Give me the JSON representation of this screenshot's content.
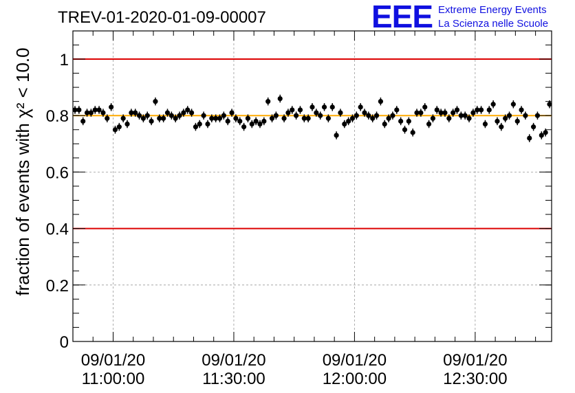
{
  "title": "TREV-01-2020-01-09-00007",
  "logo": {
    "letters": "EEE",
    "line1": "Extreme Energy Events",
    "line2": "La Scienza nelle Scuole",
    "color": "#1010e0"
  },
  "chart_data": {
    "type": "scatter",
    "title": "TREV-01-2020-01-09-00007",
    "ylabel": "fraction of events with χ² < 10.0",
    "xlabel": "",
    "ylim": [
      0,
      1.1
    ],
    "xlim_minutes": [
      -10,
      109
    ],
    "yticks": [
      0,
      0.2,
      0.4,
      0.6,
      0.8,
      1
    ],
    "ytick_labels": [
      "0",
      "0.2",
      "0.4",
      "0.6",
      "0.8",
      "1"
    ],
    "xtick_labels": [
      {
        "date": "09/01/20",
        "time": "11:00:00"
      },
      {
        "date": "09/01/20",
        "time": "11:30:00"
      },
      {
        "date": "09/01/20",
        "time": "12:00:00"
      },
      {
        "date": "09/01/20",
        "time": "12:30:00"
      }
    ],
    "grid": true,
    "reference_lines": [
      {
        "y": 1.0,
        "color": "#dd0000"
      },
      {
        "y": 0.4,
        "color": "#dd0000"
      },
      {
        "y": 0.8,
        "color": "#ffaa00"
      }
    ],
    "marker_color": "#000000",
    "series": [
      {
        "y": [
          0.82,
          0.82,
          0.78,
          0.81,
          0.81,
          0.82,
          0.82,
          0.81,
          0.79,
          0.83,
          0.75,
          0.76,
          0.79,
          0.77,
          0.81,
          0.81,
          0.8,
          0.79,
          0.8,
          0.78,
          0.85,
          0.79,
          0.79,
          0.81,
          0.8,
          0.79,
          0.8,
          0.81,
          0.82,
          0.81,
          0.76,
          0.77,
          0.8,
          0.77,
          0.79,
          0.79,
          0.79,
          0.8,
          0.78,
          0.81,
          0.79,
          0.78,
          0.76,
          0.79,
          0.77,
          0.78,
          0.77,
          0.78,
          0.85,
          0.79,
          0.8,
          0.86,
          0.79,
          0.81,
          0.82,
          0.8,
          0.82,
          0.79,
          0.79,
          0.83,
          0.81,
          0.8,
          0.83,
          0.79,
          0.83,
          0.73,
          0.81,
          0.77,
          0.78,
          0.79,
          0.8,
          0.83,
          0.81,
          0.8,
          0.79,
          0.8,
          0.85,
          0.77,
          0.79,
          0.8,
          0.82,
          0.78,
          0.75,
          0.78,
          0.74,
          0.81,
          0.81,
          0.83,
          0.77,
          0.79,
          0.82,
          0.81,
          0.81,
          0.79,
          0.81,
          0.82,
          0.8,
          0.8,
          0.79,
          0.81,
          0.82,
          0.82,
          0.77,
          0.82,
          0.84,
          0.78,
          0.76,
          0.79,
          0.8,
          0.84,
          0.78,
          0.82,
          0.8,
          0.72,
          0.76,
          0.8,
          0.73,
          0.74,
          0.84
        ],
        "yerr": 0.014
      }
    ]
  }
}
